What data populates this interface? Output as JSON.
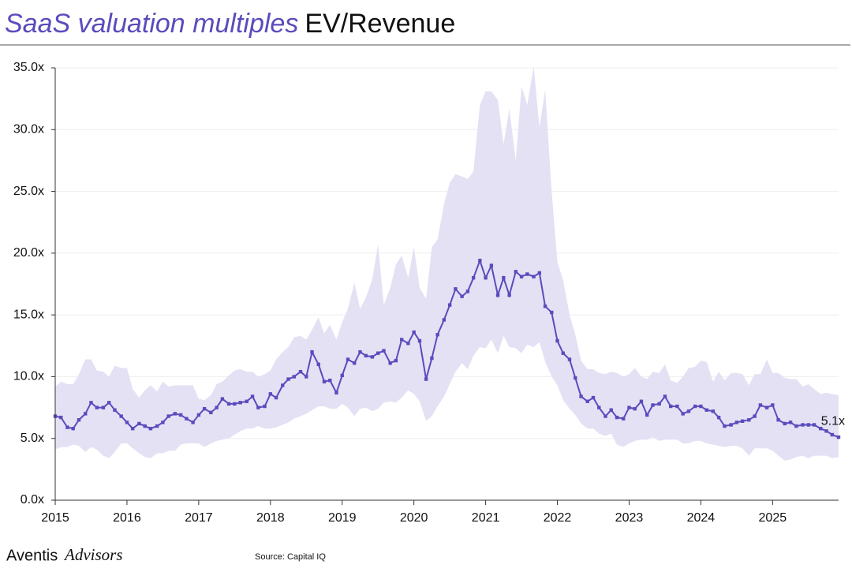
{
  "chart_data": {
    "type": "line",
    "title": "SaaS valuation multiples",
    "subtitle": "EV/Revenue",
    "source": "Source: Capital IQ",
    "brand": "Aventis",
    "brand_suffix": "Advisors",
    "annotation": "5.1x",
    "xlim": [
      2015,
      2025.92
    ],
    "xticks": [
      2015,
      2016,
      2017,
      2018,
      2019,
      2020,
      2021,
      2022,
      2023,
      2024,
      2025
    ],
    "ylim": [
      0,
      35
    ],
    "yticks": [
      {
        "value": 0,
        "label": "0.0x"
      },
      {
        "value": 5,
        "label": "5.0x"
      },
      {
        "value": 10,
        "label": "10.0x"
      },
      {
        "value": 15,
        "label": "15.0x"
      },
      {
        "value": 20,
        "label": "20.0x"
      },
      {
        "value": 25,
        "label": "25.0x"
      },
      {
        "value": 30,
        "label": "30.0x"
      },
      {
        "value": 35,
        "label": "35.0x"
      }
    ],
    "grid": true,
    "color": "#5a4bbd",
    "band_color": "#e4e1f4",
    "x": [
      2015,
      2015.08,
      2015.17,
      2015.25,
      2015.33,
      2015.42,
      2015.5,
      2015.58,
      2015.67,
      2015.75,
      2015.83,
      2015.92,
      2016,
      2016.08,
      2016.17,
      2016.25,
      2016.33,
      2016.42,
      2016.5,
      2016.58,
      2016.67,
      2016.75,
      2016.83,
      2016.92,
      2017,
      2017.08,
      2017.17,
      2017.25,
      2017.33,
      2017.42,
      2017.5,
      2017.58,
      2017.67,
      2017.75,
      2017.83,
      2017.92,
      2018,
      2018.08,
      2018.17,
      2018.25,
      2018.33,
      2018.42,
      2018.5,
      2018.58,
      2018.67,
      2018.75,
      2018.83,
      2018.92,
      2019,
      2019.08,
      2019.17,
      2019.25,
      2019.33,
      2019.42,
      2019.5,
      2019.58,
      2019.67,
      2019.75,
      2019.83,
      2019.92,
      2020,
      2020.08,
      2020.17,
      2020.25,
      2020.33,
      2020.42,
      2020.5,
      2020.58,
      2020.67,
      2020.75,
      2020.83,
      2020.92,
      2021,
      2021.08,
      2021.17,
      2021.25,
      2021.33,
      2021.42,
      2021.5,
      2021.58,
      2021.67,
      2021.75,
      2021.83,
      2021.92,
      2022,
      2022.08,
      2022.17,
      2022.25,
      2022.33,
      2022.42,
      2022.5,
      2022.58,
      2022.67,
      2022.75,
      2022.83,
      2022.92,
      2023,
      2023.08,
      2023.17,
      2023.25,
      2023.33,
      2023.42,
      2023.5,
      2023.58,
      2023.67,
      2023.75,
      2023.83,
      2023.92,
      2024,
      2024.08,
      2024.17,
      2024.25,
      2024.33,
      2024.42,
      2024.5,
      2024.58,
      2024.67,
      2024.75,
      2024.83,
      2024.92,
      2025,
      2025.08,
      2025.17,
      2025.25,
      2025.33,
      2025.42,
      2025.5,
      2025.58,
      2025.67,
      2025.75,
      2025.83,
      2025.92
    ],
    "values": [
      6.8,
      6.7,
      5.9,
      5.8,
      6.5,
      7.0,
      7.9,
      7.5,
      7.5,
      7.9,
      7.3,
      6.8,
      6.3,
      5.8,
      6.2,
      6.0,
      5.8,
      6.0,
      6.3,
      6.8,
      7.0,
      6.9,
      6.6,
      6.3,
      6.9,
      7.4,
      7.1,
      7.5,
      8.2,
      7.8,
      7.8,
      7.9,
      8.0,
      8.4,
      7.5,
      7.6,
      8.6,
      8.3,
      9.3,
      9.8,
      10.0,
      10.4,
      10.0,
      12.0,
      11.0,
      9.6,
      9.7,
      8.7,
      10.1,
      11.4,
      11.1,
      12.0,
      11.7,
      11.6,
      11.9,
      12.1,
      11.1,
      11.3,
      13.0,
      12.7,
      13.6,
      12.9,
      9.8,
      11.5,
      13.4,
      14.6,
      15.8,
      17.1,
      16.5,
      16.9,
      18.0,
      19.4,
      18.0,
      19.0,
      16.6,
      18.0,
      16.6,
      18.5,
      18.1,
      18.3,
      18.1,
      18.4,
      15.7,
      15.2,
      12.9,
      11.9,
      11.4,
      9.9,
      8.4,
      8.0,
      8.3,
      7.5,
      6.8,
      7.3,
      6.7,
      6.6,
      7.5,
      7.4,
      8.0,
      6.9,
      7.7,
      7.8,
      8.4,
      7.6,
      7.6,
      7.0,
      7.2,
      7.6,
      7.6,
      7.3,
      7.2,
      6.7,
      6.0,
      6.1,
      6.3,
      6.4,
      6.5,
      6.8,
      7.7,
      7.5,
      7.7,
      6.5,
      6.2,
      6.3,
      6.0,
      6.1,
      6.1,
      6.1,
      5.8,
      5.6,
      5.3,
      5.1
    ],
    "band_upper": [
      9.2,
      9.6,
      9.4,
      9.4,
      10.2,
      11.4,
      11.4,
      10.5,
      10.4,
      10.0,
      10.9,
      10.7,
      10.7,
      9.0,
      8.3,
      8.9,
      9.3,
      8.8,
      9.6,
      9.2,
      9.3,
      9.3,
      9.3,
      9.3,
      8.2,
      8.1,
      8.5,
      9.4,
      9.6,
      10.1,
      10.5,
      10.6,
      10.4,
      10.4,
      10.0,
      10.2,
      10.5,
      11.4,
      12.0,
      12.4,
      13.2,
      13.3,
      13.0,
      13.8,
      14.8,
      13.5,
      14.2,
      13.0,
      14.4,
      15.5,
      17.6,
      15.5,
      16.4,
      17.9,
      20.7,
      15.8,
      17.2,
      19.1,
      19.8,
      18.0,
      20.5,
      17.2,
      16.3,
      20.5,
      21.1,
      24.0,
      25.7,
      26.4,
      26.2,
      26.0,
      26.6,
      32.0,
      33.1,
      33.1,
      32.4,
      28.8,
      31.7,
      27.5,
      33.5,
      32.0,
      35.1,
      30.2,
      33.2,
      25.0,
      19.3,
      17.8,
      15.0,
      13.4,
      11.3,
      10.6,
      10.6,
      10.3,
      10.2,
      10.4,
      10.3,
      10.0,
      10.2,
      10.7,
      10.0,
      9.8,
      10.4,
      10.3,
      11.0,
      9.7,
      9.5,
      10.0,
      10.7,
      10.8,
      11.3,
      11.2,
      9.6,
      10.4,
      9.7,
      10.3,
      10.3,
      10.2,
      9.3,
      10.2,
      10.2,
      11.4,
      10.3,
      10.3,
      9.9,
      9.8,
      9.8,
      9.2,
      9.4,
      9.0,
      8.6,
      8.7,
      8.6,
      8.5
    ],
    "band_lower": [
      4.1,
      4.3,
      4.3,
      4.5,
      4.4,
      3.9,
      4.3,
      4.1,
      3.6,
      3.4,
      3.9,
      4.6,
      4.6,
      4.2,
      3.8,
      3.5,
      3.4,
      3.8,
      3.8,
      4.0,
      4.0,
      4.5,
      4.6,
      4.6,
      4.6,
      4.3,
      4.6,
      4.8,
      4.9,
      5.0,
      5.3,
      5.6,
      5.8,
      5.8,
      6.0,
      5.8,
      5.8,
      5.9,
      6.1,
      6.3,
      6.6,
      6.8,
      7.0,
      7.3,
      7.6,
      7.6,
      7.4,
      7.4,
      7.8,
      7.5,
      6.8,
      7.4,
      7.5,
      7.2,
      7.4,
      7.9,
      8.0,
      7.9,
      8.3,
      8.9,
      8.6,
      8.0,
      6.4,
      6.8,
      7.6,
      8.4,
      9.4,
      10.4,
      11.1,
      10.6,
      11.7,
      12.4,
      12.3,
      13.0,
      11.9,
      13.3,
      12.4,
      12.3,
      11.9,
      12.6,
      12.4,
      12.8,
      11.2,
      10.0,
      9.3,
      8.1,
      7.4,
      6.9,
      6.2,
      5.8,
      5.8,
      5.4,
      5.2,
      5.4,
      4.5,
      4.3,
      4.6,
      4.8,
      4.9,
      4.9,
      5.1,
      4.8,
      4.9,
      4.9,
      4.9,
      4.6,
      4.6,
      4.8,
      4.8,
      4.6,
      4.5,
      4.4,
      4.3,
      4.4,
      4.4,
      4.2,
      3.6,
      4.2,
      4.2,
      4.2,
      4.0,
      3.6,
      3.2,
      3.3,
      3.5,
      3.6,
      3.4,
      3.6,
      3.6,
      3.6,
      3.4,
      3.5
    ]
  }
}
